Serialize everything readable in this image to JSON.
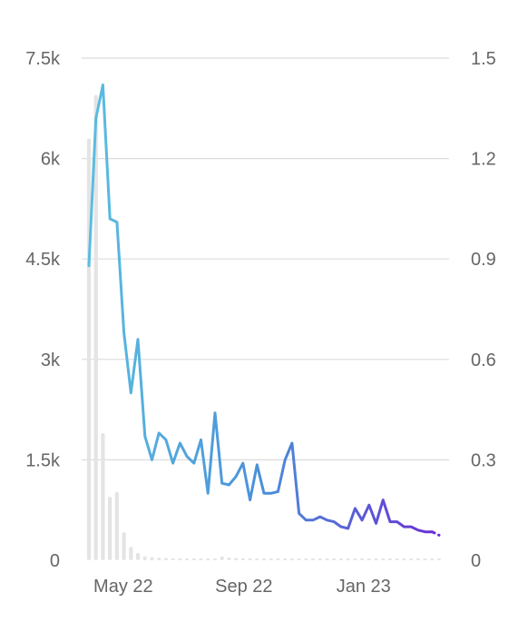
{
  "chart_data": {
    "type": "bar+line",
    "title": "",
    "xlabel": "",
    "ylabel_left": "",
    "ylabel_right": "",
    "grid": true,
    "legend": "none",
    "x_axis": {
      "start_date": "2022-03-27",
      "end_date": "2023-03-19",
      "tick_labels": [
        "May 22",
        "Sep 22",
        "Jan 23"
      ],
      "tick_dates": [
        "2022-05-01",
        "2022-09-01",
        "2023-01-01"
      ]
    },
    "y_left": {
      "range": [
        0,
        7500
      ],
      "ticks": [
        0,
        1500,
        3000,
        4500,
        6000,
        7500
      ],
      "tick_labels": [
        "0",
        "1.5k",
        "3k",
        "4.5k",
        "6k",
        "7.5k"
      ]
    },
    "y_right": {
      "range": [
        0,
        1.5
      ],
      "ticks": [
        0,
        0.3,
        0.6,
        0.9,
        1.2,
        1.5
      ],
      "tick_labels": [
        "0",
        "0.3",
        "0.6",
        "0.9",
        "1.2",
        "1.5"
      ]
    },
    "bar_series": {
      "axis": "left",
      "color": "#e4e4e4",
      "values": [
        6300,
        6950,
        1900,
        950,
        1020,
        420,
        200,
        110,
        60,
        45,
        40,
        35,
        30,
        30,
        25,
        25,
        25,
        25,
        25,
        60,
        40,
        35,
        30,
        25,
        25,
        20,
        20,
        20,
        20,
        20,
        20,
        20,
        15,
        15,
        15,
        15,
        15,
        15,
        15,
        15,
        15,
        15,
        15,
        15,
        15,
        15,
        15,
        15,
        15,
        15,
        15
      ]
    },
    "line_series": {
      "axis": "right",
      "color_start": "#5bbde0",
      "color_mid": "#4a8fd9",
      "color_end": "#6a2fd4",
      "values": [
        0.88,
        1.32,
        1.42,
        1.02,
        1.01,
        0.68,
        0.5,
        0.66,
        0.37,
        0.3,
        0.38,
        0.36,
        0.29,
        0.35,
        0.31,
        0.29,
        0.36,
        0.2,
        0.44,
        0.23,
        0.225,
        0.25,
        0.29,
        0.18,
        0.285,
        0.2,
        0.2,
        0.205,
        0.3,
        0.35,
        0.14,
        0.12,
        0.12,
        0.13,
        0.12,
        0.115,
        0.1,
        0.095,
        0.155,
        0.12,
        0.165,
        0.11,
        0.18,
        0.115,
        0.115,
        0.1,
        0.1,
        0.09,
        0.085,
        0.085,
        0.075
      ]
    }
  }
}
